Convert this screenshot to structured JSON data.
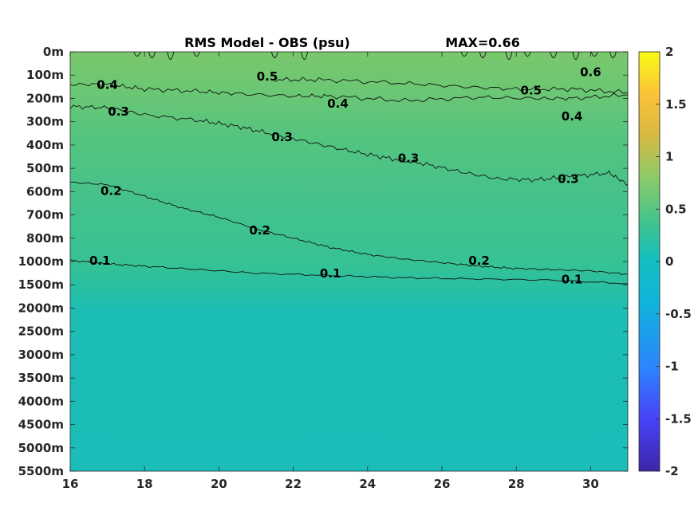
{
  "chart_data": {
    "type": "heatmap",
    "title": "RMS Model - OBS (psu)",
    "annotation": "MAX=0.66",
    "x_ticks": [
      16,
      18,
      20,
      22,
      24,
      26,
      28,
      30
    ],
    "xlim": [
      16,
      31
    ],
    "y_ticks": [
      "0m",
      "100m",
      "200m",
      "300m",
      "400m",
      "500m",
      "600m",
      "700m",
      "800m",
      "1000m",
      "1500m",
      "2000m",
      "2500m",
      "3000m",
      "3500m",
      "4000m",
      "4500m",
      "5000m",
      "5500m"
    ],
    "colorbar": {
      "range": [
        -2,
        2
      ],
      "ticks": [
        "2",
        "1.5",
        "1",
        "0.5",
        "0",
        "-0.5",
        "-1",
        "-1.5",
        "-2"
      ],
      "colormap": [
        "#3e26a8",
        "#4743f8",
        "#2c86fd",
        "#0fb4db",
        "#2ac4a5",
        "#82ca6c",
        "#d7b941",
        "#fcc239",
        "#f9fb15"
      ]
    },
    "contour_labels": [
      {
        "text": "0.5",
        "x": 21.3,
        "y_level": 1.1
      },
      {
        "text": "0.6",
        "x": 30.0,
        "y_level": 0.9
      },
      {
        "text": "0.4",
        "x": 17.0,
        "y_level": 1.45
      },
      {
        "text": "0.5",
        "x": 28.4,
        "y_level": 1.7
      },
      {
        "text": "0.3",
        "x": 17.3,
        "y_level": 2.6
      },
      {
        "text": "0.4",
        "x": 23.2,
        "y_level": 2.25
      },
      {
        "text": "0.4",
        "x": 29.5,
        "y_level": 2.8
      },
      {
        "text": "0.3",
        "x": 21.7,
        "y_level": 3.7
      },
      {
        "text": "0.3",
        "x": 25.1,
        "y_level": 4.6
      },
      {
        "text": "0.3",
        "x": 29.4,
        "y_level": 5.5
      },
      {
        "text": "0.2",
        "x": 17.1,
        "y_level": 6.0
      },
      {
        "text": "0.2",
        "x": 21.1,
        "y_level": 7.7
      },
      {
        "text": "0.2",
        "x": 27.0,
        "y_level": 9.0
      },
      {
        "text": "0.1",
        "x": 16.8,
        "y_level": 9.0
      },
      {
        "text": "0.1",
        "x": 23.0,
        "y_level": 9.55
      },
      {
        "text": "0.1",
        "x": 29.5,
        "y_level": 9.8
      }
    ],
    "contours": [
      {
        "level": 0.4,
        "points": [
          [
            16,
            1.4
          ],
          [
            17,
            1.4
          ],
          [
            18,
            1.6
          ],
          [
            19.5,
            1.7
          ],
          [
            20.5,
            1.8
          ],
          [
            22,
            1.9
          ],
          [
            23,
            1.9
          ],
          [
            25,
            2.1
          ],
          [
            27,
            1.95
          ],
          [
            28.5,
            2.0
          ],
          [
            29.5,
            2.0
          ],
          [
            31,
            1.85
          ]
        ]
      },
      {
        "level": 0.5,
        "points": [
          [
            21.5,
            1.2
          ],
          [
            22.8,
            1.2
          ],
          [
            25,
            1.35
          ],
          [
            26.6,
            1.5
          ],
          [
            28,
            1.6
          ],
          [
            29.5,
            1.6
          ],
          [
            31,
            1.75
          ]
        ]
      },
      {
        "level": 0.3,
        "points": [
          [
            16,
            2.35
          ],
          [
            17,
            2.4
          ],
          [
            18,
            2.7
          ],
          [
            19.5,
            2.95
          ],
          [
            20.5,
            3.2
          ],
          [
            21.5,
            3.55
          ],
          [
            22.5,
            3.9
          ],
          [
            23.5,
            4.25
          ],
          [
            24.5,
            4.55
          ],
          [
            25.5,
            4.8
          ],
          [
            26.5,
            5.15
          ],
          [
            27.5,
            5.45
          ],
          [
            28.5,
            5.5
          ],
          [
            29.5,
            5.35
          ],
          [
            30.5,
            5.2
          ],
          [
            31,
            5.7
          ]
        ]
      },
      {
        "level": 0.2,
        "points": [
          [
            16,
            5.6
          ],
          [
            17,
            5.7
          ],
          [
            18,
            6.2
          ],
          [
            19,
            6.7
          ],
          [
            20,
            7.1
          ],
          [
            21,
            7.6
          ],
          [
            22,
            8.0
          ],
          [
            23,
            8.4
          ],
          [
            24,
            8.7
          ],
          [
            25,
            8.9
          ],
          [
            26,
            9.05
          ],
          [
            27,
            9.2
          ],
          [
            28,
            9.3
          ],
          [
            29,
            9.35
          ],
          [
            30,
            9.4
          ],
          [
            31,
            9.55
          ]
        ]
      },
      {
        "level": 0.1,
        "points": [
          [
            16,
            8.95
          ],
          [
            17,
            9.1
          ],
          [
            18,
            9.2
          ],
          [
            19.5,
            9.35
          ],
          [
            21,
            9.5
          ],
          [
            23,
            9.6
          ],
          [
            25,
            9.7
          ],
          [
            27,
            9.75
          ],
          [
            29,
            9.8
          ],
          [
            31,
            9.95
          ]
        ]
      }
    ]
  }
}
